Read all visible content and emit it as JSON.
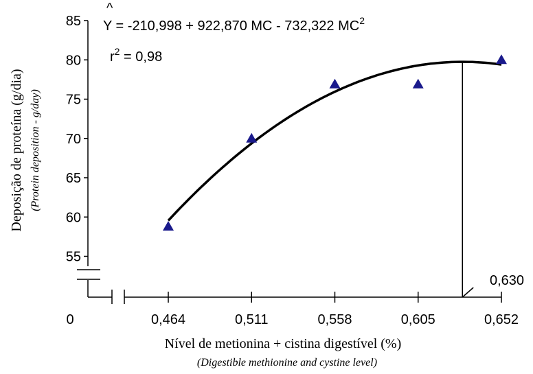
{
  "chart_data": {
    "type": "scatter",
    "title": "",
    "xlabel": "Nível de metionina + cistina digestível (%)",
    "xlabel_en": "(Digestible methionine and cystine level)",
    "ylabel": "Deposição de proteína (g/dia)",
    "ylabel_en": "(Protein deposition - g/day)",
    "x_origin_label": "0",
    "x_ticks": [
      "0,464",
      "0,511",
      "0,558",
      "0,605",
      "0,652"
    ],
    "x_tick_values": [
      0.464,
      0.511,
      0.558,
      0.605,
      0.652
    ],
    "xlim": [
      0.464,
      0.652
    ],
    "y_ticks": [
      "55",
      "60",
      "65",
      "70",
      "75",
      "80",
      "85"
    ],
    "y_tick_values": [
      55,
      60,
      65,
      70,
      75,
      80,
      85
    ],
    "ylim": [
      50,
      85
    ],
    "axis_breaks": [
      "x",
      "y"
    ],
    "grid": false,
    "series": [
      {
        "marker": "triangle",
        "color": "#1a1a8c",
        "x": [
          0.464,
          0.511,
          0.558,
          0.605,
          0.652
        ],
        "y": [
          58.8,
          70.0,
          76.9,
          76.9,
          80.0
        ]
      }
    ],
    "fit": {
      "type": "quadratic",
      "coefficients": [
        -210.998,
        922.87,
        -732.322
      ],
      "x_range": [
        0.464,
        0.652
      ],
      "color": "#000000"
    },
    "equation": {
      "y_symbol": "Y",
      "hat": "^",
      "text": " = -210,998 + 922,870 MC - 732,322 MC",
      "superscript": "2"
    },
    "r2": {
      "prefix": "r",
      "superscript": "2",
      "text": " = 0,98"
    },
    "optimum": {
      "x": 0.63,
      "label": "0,630"
    }
  }
}
